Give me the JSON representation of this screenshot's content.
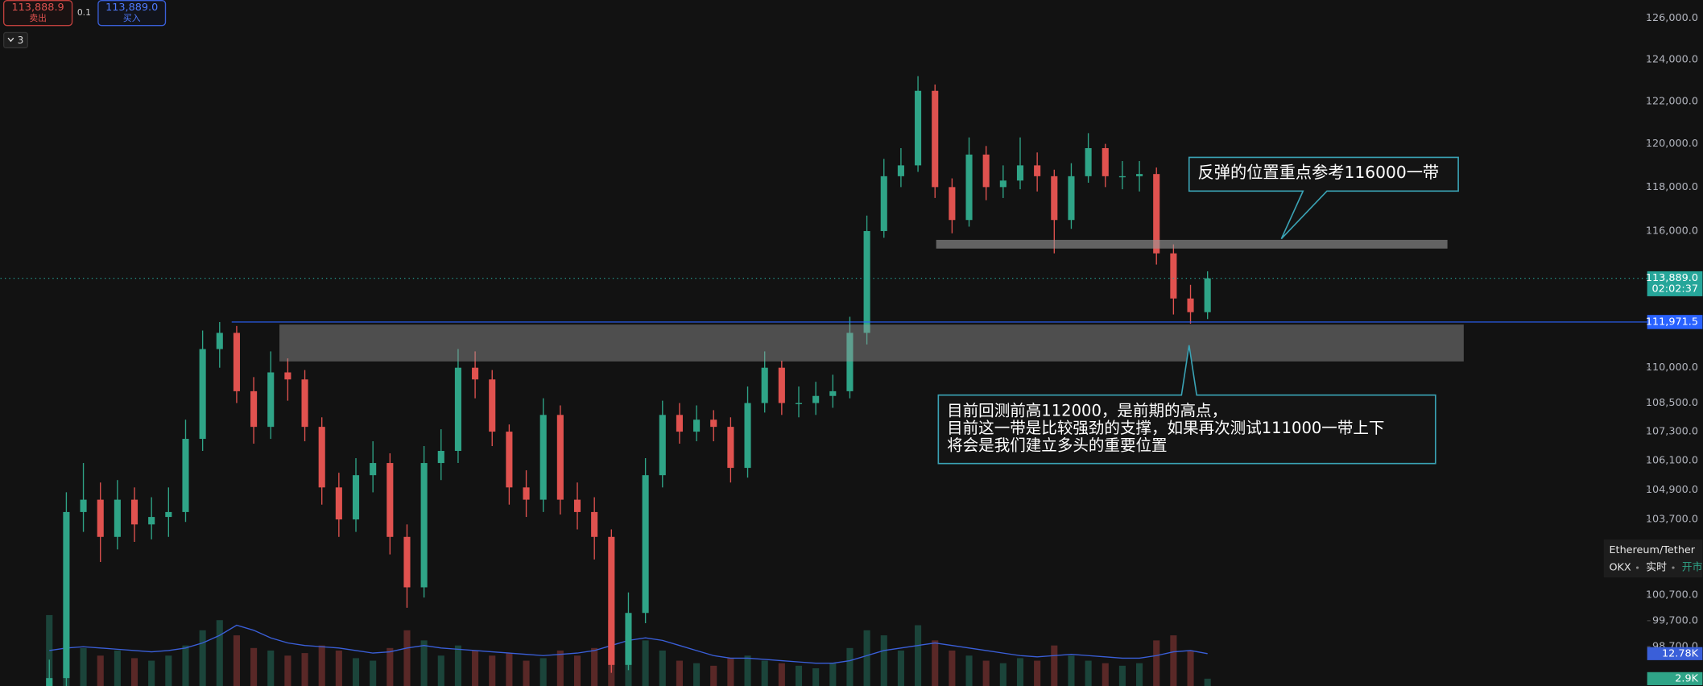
{
  "chart_data": {
    "type": "candlestick",
    "log_scale": true,
    "grid": false,
    "up_color": "#2fa487",
    "down_color": "#e0524f",
    "ylim": [
      97200,
      126900
    ],
    "yticks": [
      {
        "value": 126000,
        "label": "126,000.0"
      },
      {
        "value": 124000,
        "label": "124,000.0"
      },
      {
        "value": 122000,
        "label": "122,000.0"
      },
      {
        "value": 120000,
        "label": "120,000.0"
      },
      {
        "value": 118000,
        "label": "118,000.0"
      },
      {
        "value": 116000,
        "label": "116,000.0"
      },
      {
        "value": 110000,
        "label": "110,000.0"
      },
      {
        "value": 108500,
        "label": "108,500.0"
      },
      {
        "value": 107300,
        "label": "107,300.0"
      },
      {
        "value": 106100,
        "label": "106,100.0"
      },
      {
        "value": 104900,
        "label": "104,900.0"
      },
      {
        "value": 103700,
        "label": "103,700.0"
      },
      {
        "value": 100700,
        "label": "100,700.0"
      },
      {
        "value": 99700,
        "label": "99,700.0"
      },
      {
        "value": 98700,
        "label": "98,700.0"
      }
    ],
    "open": [
      96500,
      97500,
      104000,
      104500,
      103000,
      104500,
      103500,
      103800,
      104000,
      107000,
      110800,
      111500,
      109000,
      107500,
      109800,
      109500,
      107500,
      105000,
      103700,
      105500,
      106000,
      103000,
      101000,
      106000,
      106500,
      110000,
      109500,
      107300,
      105000,
      104500,
      108000,
      104500,
      104000,
      103000,
      98000,
      100000,
      105500,
      108000,
      107300,
      107800,
      107500,
      105800,
      108500,
      110000,
      108500,
      108500,
      108800,
      109000,
      111500,
      116000,
      118500,
      119000,
      122500,
      118000,
      116500,
      119500,
      118000,
      118300,
      119000,
      118500,
      116500,
      118500,
      119800,
      118500,
      118500,
      118600,
      115000,
      113000,
      112400
    ],
    "high": [
      98200,
      104800,
      106000,
      105200,
      105300,
      105000,
      104600,
      105000,
      107800,
      111600,
      111970,
      111800,
      109600,
      110700,
      110400,
      109900,
      107900,
      105600,
      106200,
      106900,
      106400,
      103500,
      106700,
      107400,
      110800,
      110700,
      109900,
      107600,
      105700,
      108700,
      108400,
      105200,
      104600,
      103300,
      100800,
      106200,
      108600,
      108500,
      108400,
      108200,
      107900,
      109200,
      110700,
      110300,
      109200,
      109400,
      109700,
      112200,
      116700,
      119300,
      119800,
      123200,
      122800,
      118400,
      120300,
      119900,
      119000,
      120300,
      119600,
      118800,
      119100,
      120500,
      120000,
      119200,
      119200,
      118900,
      115400,
      113600,
      114200
    ],
    "low": [
      96000,
      97200,
      103200,
      102000,
      102500,
      102800,
      102900,
      103000,
      103600,
      106500,
      110000,
      108500,
      106800,
      107000,
      108600,
      106900,
      104300,
      103000,
      103200,
      104800,
      102300,
      100200,
      100600,
      105300,
      106000,
      108700,
      106700,
      104300,
      103800,
      104000,
      103900,
      103300,
      102100,
      97700,
      97800,
      99600,
      105000,
      106800,
      106900,
      106900,
      105200,
      105400,
      108100,
      108000,
      107900,
      108000,
      108300,
      108700,
      111000,
      115700,
      118000,
      118700,
      117500,
      115900,
      116200,
      117400,
      117500,
      117900,
      117800,
      115000,
      116100,
      118200,
      118000,
      117900,
      117800,
      114500,
      112300,
      111900,
      112100
    ],
    "close": [
      97500,
      104000,
      104500,
      103000,
      104500,
      103500,
      103800,
      104000,
      107000,
      110800,
      111500,
      109000,
      107500,
      109800,
      109500,
      107500,
      105000,
      103700,
      105500,
      106000,
      103000,
      101000,
      106000,
      106500,
      110000,
      109500,
      107300,
      105000,
      104500,
      108000,
      104500,
      104000,
      103000,
      98000,
      100000,
      105500,
      108000,
      107300,
      107800,
      107500,
      105800,
      108500,
      110000,
      108500,
      108500,
      108800,
      109000,
      111500,
      116000,
      118500,
      119000,
      122500,
      118000,
      116500,
      119500,
      118000,
      118300,
      119000,
      118500,
      116500,
      118500,
      119800,
      118500,
      118500,
      118600,
      115000,
      113000,
      112400,
      113889
    ],
    "volume": {
      "ylim": [
        0,
        60000
      ],
      "ma_color": "#3a5fd9",
      "values": [
        28000,
        18000,
        15000,
        12000,
        14000,
        11000,
        10000,
        12000,
        16000,
        22000,
        26000,
        20000,
        15000,
        14000,
        12000,
        13000,
        16000,
        14000,
        11000,
        10000,
        15000,
        22000,
        18000,
        12000,
        16000,
        14000,
        12000,
        13000,
        10000,
        11000,
        14000,
        12000,
        15000,
        26000,
        20000,
        18000,
        14000,
        10000,
        9000,
        8000,
        11000,
        12000,
        10000,
        9000,
        8000,
        7000,
        9000,
        15000,
        22000,
        20000,
        14000,
        24000,
        18000,
        14000,
        12000,
        10000,
        9000,
        11000,
        10000,
        16000,
        12000,
        10000,
        9000,
        8000,
        9000,
        18000,
        20000,
        14000,
        2900
      ],
      "ma": [
        14000,
        15000,
        15500,
        15000,
        14500,
        14000,
        13500,
        14000,
        15000,
        17000,
        20000,
        24000,
        22000,
        19000,
        17000,
        16000,
        15500,
        15000,
        14000,
        13000,
        13500,
        15000,
        16000,
        15000,
        14500,
        14000,
        13500,
        13000,
        12500,
        12000,
        12500,
        13000,
        14000,
        16000,
        18000,
        19000,
        18000,
        16000,
        14000,
        12000,
        11000,
        11000,
        10500,
        10000,
        9500,
        9000,
        9000,
        10000,
        12000,
        14000,
        15000,
        16000,
        17000,
        16000,
        15000,
        14000,
        13000,
        12000,
        11500,
        12000,
        12500,
        12000,
        11500,
        11000,
        11000,
        12000,
        13500,
        14000,
        12780
      ],
      "last_ma_label": "12.78K",
      "last_volume_label": "2.9K"
    },
    "price_lines": [
      {
        "value": 113889,
        "label": "113,889.0",
        "countdown": "02:02:37",
        "color": "#26a69a"
      },
      {
        "value": 111971.5,
        "label": "111,971.5",
        "color": "#2962ff"
      }
    ],
    "annotations": {
      "rebound": "反弹的位置重点参考116000一带",
      "support": [
        "目前回测前高112000，是前期的高点，",
        "目前这一带是比较强劲的支撑，如果再次测试111000一带上下",
        "将会是我们建立多头的重要位置"
      ]
    }
  },
  "ui": {
    "sell_price": "113,888.9",
    "sell_label": "卖出",
    "quantity": "0.1",
    "buy_price": "113,889.0",
    "buy_label": "买入",
    "indicator_count": "3",
    "symbol": "Ethereum/Tether",
    "exchange": "OKX",
    "mode": "实时",
    "status": "开市"
  }
}
